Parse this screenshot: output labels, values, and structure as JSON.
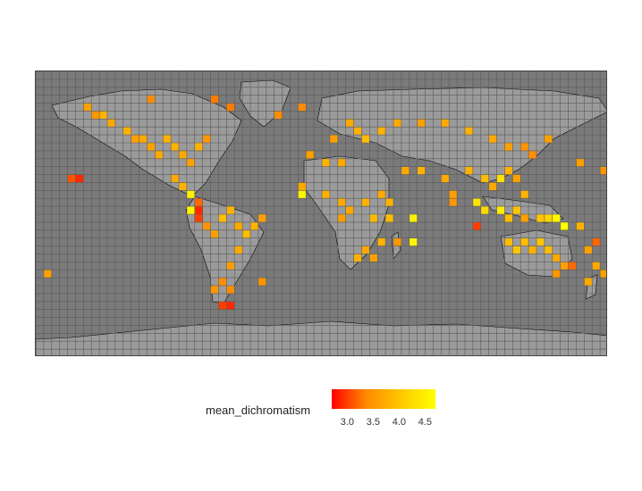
{
  "chart_data": {
    "type": "heatmap",
    "title": "",
    "projection": "equirectangular world grid",
    "cell_size_degrees": 5,
    "legend": {
      "title": "mean_dichromatism",
      "ticks": [
        "3.0",
        "3.5",
        "4.0",
        "4.5"
      ],
      "range": [
        2.7,
        4.7
      ],
      "colors": [
        "#ff0000",
        "#ff8a00",
        "#ffc800",
        "#ffff00"
      ]
    },
    "colors": {
      "background": "#7a7a7a",
      "land": "#9b9b9b",
      "grid": "#5a5a5a",
      "border": "#000000"
    },
    "cells": [
      {
        "lon": -160,
        "lat": 20,
        "value": 3.1
      },
      {
        "lon": -155,
        "lat": 20,
        "value": 2.9
      },
      {
        "lon": -150,
        "lat": 65,
        "value": 3.6
      },
      {
        "lon": -145,
        "lat": 60,
        "value": 3.5
      },
      {
        "lon": -140,
        "lat": 60,
        "value": 3.8
      },
      {
        "lon": -135,
        "lat": 55,
        "value": 3.7
      },
      {
        "lon": -125,
        "lat": 50,
        "value": 3.8
      },
      {
        "lon": -120,
        "lat": 45,
        "value": 3.6
      },
      {
        "lon": -115,
        "lat": 45,
        "value": 3.7
      },
      {
        "lon": -110,
        "lat": 40,
        "value": 3.6
      },
      {
        "lon": -105,
        "lat": 35,
        "value": 3.7
      },
      {
        "lon": -100,
        "lat": 45,
        "value": 3.8
      },
      {
        "lon": -95,
        "lat": 40,
        "value": 3.8
      },
      {
        "lon": -90,
        "lat": 35,
        "value": 3.7
      },
      {
        "lon": -85,
        "lat": 30,
        "value": 3.6
      },
      {
        "lon": -80,
        "lat": 40,
        "value": 3.8
      },
      {
        "lon": -75,
        "lat": 45,
        "value": 3.5
      },
      {
        "lon": -95,
        "lat": 20,
        "value": 3.7
      },
      {
        "lon": -90,
        "lat": 15,
        "value": 3.8
      },
      {
        "lon": -85,
        "lat": 10,
        "value": 4.5
      },
      {
        "lon": -80,
        "lat": 5,
        "value": 3.2
      },
      {
        "lon": -80,
        "lat": 0,
        "value": 2.9
      },
      {
        "lon": -85,
        "lat": 0,
        "value": 4.6
      },
      {
        "lon": -80,
        "lat": -5,
        "value": 3.0
      },
      {
        "lon": -75,
        "lat": -10,
        "value": 3.5
      },
      {
        "lon": -70,
        "lat": -15,
        "value": 3.6
      },
      {
        "lon": -65,
        "lat": -5,
        "value": 3.9
      },
      {
        "lon": -60,
        "lat": 0,
        "value": 3.8
      },
      {
        "lon": -55,
        "lat": -10,
        "value": 3.7
      },
      {
        "lon": -50,
        "lat": -15,
        "value": 3.9
      },
      {
        "lon": -45,
        "lat": -10,
        "value": 3.8
      },
      {
        "lon": -40,
        "lat": -5,
        "value": 3.6
      },
      {
        "lon": -55,
        "lat": -25,
        "value": 3.7
      },
      {
        "lon": -60,
        "lat": -35,
        "value": 3.6
      },
      {
        "lon": -65,
        "lat": -45,
        "value": 3.4
      },
      {
        "lon": -70,
        "lat": -50,
        "value": 3.5
      },
      {
        "lon": -60,
        "lat": -50,
        "value": 3.4
      },
      {
        "lon": -65,
        "lat": -60,
        "value": 3.0
      },
      {
        "lon": -60,
        "lat": -60,
        "value": 2.9
      },
      {
        "lon": -40,
        "lat": -45,
        "value": 3.5
      },
      {
        "lon": -30,
        "lat": 60,
        "value": 3.4
      },
      {
        "lon": -60,
        "lat": 65,
        "value": 3.3
      },
      {
        "lon": -15,
        "lat": 65,
        "value": 3.4
      },
      {
        "lon": 15,
        "lat": 55,
        "value": 3.7
      },
      {
        "lon": 20,
        "lat": 50,
        "value": 3.8
      },
      {
        "lon": 5,
        "lat": 45,
        "value": 3.6
      },
      {
        "lon": 25,
        "lat": 45,
        "value": 3.9
      },
      {
        "lon": 35,
        "lat": 50,
        "value": 3.8
      },
      {
        "lon": 45,
        "lat": 55,
        "value": 3.7
      },
      {
        "lon": 60,
        "lat": 55,
        "value": 3.6
      },
      {
        "lon": 75,
        "lat": 55,
        "value": 3.7
      },
      {
        "lon": 90,
        "lat": 50,
        "value": 3.8
      },
      {
        "lon": 105,
        "lat": 45,
        "value": 3.7
      },
      {
        "lon": 115,
        "lat": 40,
        "value": 3.6
      },
      {
        "lon": 125,
        "lat": 40,
        "value": 3.5
      },
      {
        "lon": 130,
        "lat": 35,
        "value": 3.4
      },
      {
        "lon": 140,
        "lat": 45,
        "value": 3.6
      },
      {
        "lon": -10,
        "lat": 35,
        "value": 3.6
      },
      {
        "lon": 0,
        "lat": 30,
        "value": 3.8
      },
      {
        "lon": 10,
        "lat": 30,
        "value": 3.7
      },
      {
        "lon": -15,
        "lat": 15,
        "value": 3.7
      },
      {
        "lon": -15,
        "lat": 10,
        "value": 4.6
      },
      {
        "lon": 0,
        "lat": 10,
        "value": 3.8
      },
      {
        "lon": 10,
        "lat": 5,
        "value": 3.7
      },
      {
        "lon": 10,
        "lat": -5,
        "value": 3.6
      },
      {
        "lon": 15,
        "lat": 0,
        "value": 3.7
      },
      {
        "lon": 25,
        "lat": 5,
        "value": 3.8
      },
      {
        "lon": 30,
        "lat": -5,
        "value": 3.9
      },
      {
        "lon": 35,
        "lat": 10,
        "value": 3.7
      },
      {
        "lon": 40,
        "lat": 5,
        "value": 3.8
      },
      {
        "lon": 40,
        "lat": -5,
        "value": 3.9
      },
      {
        "lon": 35,
        "lat": -20,
        "value": 3.8
      },
      {
        "lon": 25,
        "lat": -25,
        "value": 3.7
      },
      {
        "lon": 20,
        "lat": -30,
        "value": 3.8
      },
      {
        "lon": 30,
        "lat": -30,
        "value": 3.6
      },
      {
        "lon": 45,
        "lat": -20,
        "value": 3.5
      },
      {
        "lon": 55,
        "lat": -20,
        "value": 4.6
      },
      {
        "lon": 55,
        "lat": -5,
        "value": 4.5
      },
      {
        "lon": 50,
        "lat": 25,
        "value": 3.7
      },
      {
        "lon": 60,
        "lat": 25,
        "value": 3.8
      },
      {
        "lon": 75,
        "lat": 20,
        "value": 3.7
      },
      {
        "lon": 80,
        "lat": 10,
        "value": 3.6
      },
      {
        "lon": 80,
        "lat": 5,
        "value": 3.5
      },
      {
        "lon": 90,
        "lat": 25,
        "value": 3.8
      },
      {
        "lon": 100,
        "lat": 20,
        "value": 3.9
      },
      {
        "lon": 105,
        "lat": 15,
        "value": 3.7
      },
      {
        "lon": 110,
        "lat": 20,
        "value": 4.3
      },
      {
        "lon": 115,
        "lat": 25,
        "value": 3.8
      },
      {
        "lon": 120,
        "lat": 20,
        "value": 3.6
      },
      {
        "lon": 95,
        "lat": 5,
        "value": 4.4
      },
      {
        "lon": 100,
        "lat": 0,
        "value": 4.2
      },
      {
        "lon": 110,
        "lat": 0,
        "value": 4.5
      },
      {
        "lon": 115,
        "lat": -5,
        "value": 3.9
      },
      {
        "lon": 120,
        "lat": 0,
        "value": 4.0
      },
      {
        "lon": 125,
        "lat": -5,
        "value": 3.6
      },
      {
        "lon": 125,
        "lat": 10,
        "value": 3.8
      },
      {
        "lon": 135,
        "lat": -5,
        "value": 4.0
      },
      {
        "lon": 140,
        "lat": -5,
        "value": 4.2
      },
      {
        "lon": 145,
        "lat": -5,
        "value": 4.6
      },
      {
        "lon": 150,
        "lat": -10,
        "value": 4.7
      },
      {
        "lon": 160,
        "lat": -10,
        "value": 3.8
      },
      {
        "lon": 95,
        "lat": -10,
        "value": 3.0
      },
      {
        "lon": 115,
        "lat": -20,
        "value": 3.9
      },
      {
        "lon": 120,
        "lat": -25,
        "value": 4.0
      },
      {
        "lon": 125,
        "lat": -20,
        "value": 3.9
      },
      {
        "lon": 130,
        "lat": -25,
        "value": 3.8
      },
      {
        "lon": 135,
        "lat": -20,
        "value": 4.0
      },
      {
        "lon": 140,
        "lat": -25,
        "value": 3.9
      },
      {
        "lon": 145,
        "lat": -30,
        "value": 3.7
      },
      {
        "lon": 150,
        "lat": -35,
        "value": 3.6
      },
      {
        "lon": 145,
        "lat": -40,
        "value": 3.5
      },
      {
        "lon": 170,
        "lat": -20,
        "value": 3.2
      },
      {
        "lon": 165,
        "lat": -25,
        "value": 3.6
      },
      {
        "lon": 170,
        "lat": -35,
        "value": 3.7
      },
      {
        "lon": 175,
        "lat": -40,
        "value": 3.6
      },
      {
        "lon": 165,
        "lat": -45,
        "value": 3.7
      },
      {
        "lon": 155,
        "lat": -35,
        "value": 3.2
      },
      {
        "lon": 160,
        "lat": 30,
        "value": 3.6
      },
      {
        "lon": 175,
        "lat": 25,
        "value": 3.5
      },
      {
        "lon": -175,
        "lat": -40,
        "value": 3.6
      },
      {
        "lon": -70,
        "lat": 70,
        "value": 3.3
      },
      {
        "lon": -110,
        "lat": 70,
        "value": 3.4
      }
    ]
  }
}
